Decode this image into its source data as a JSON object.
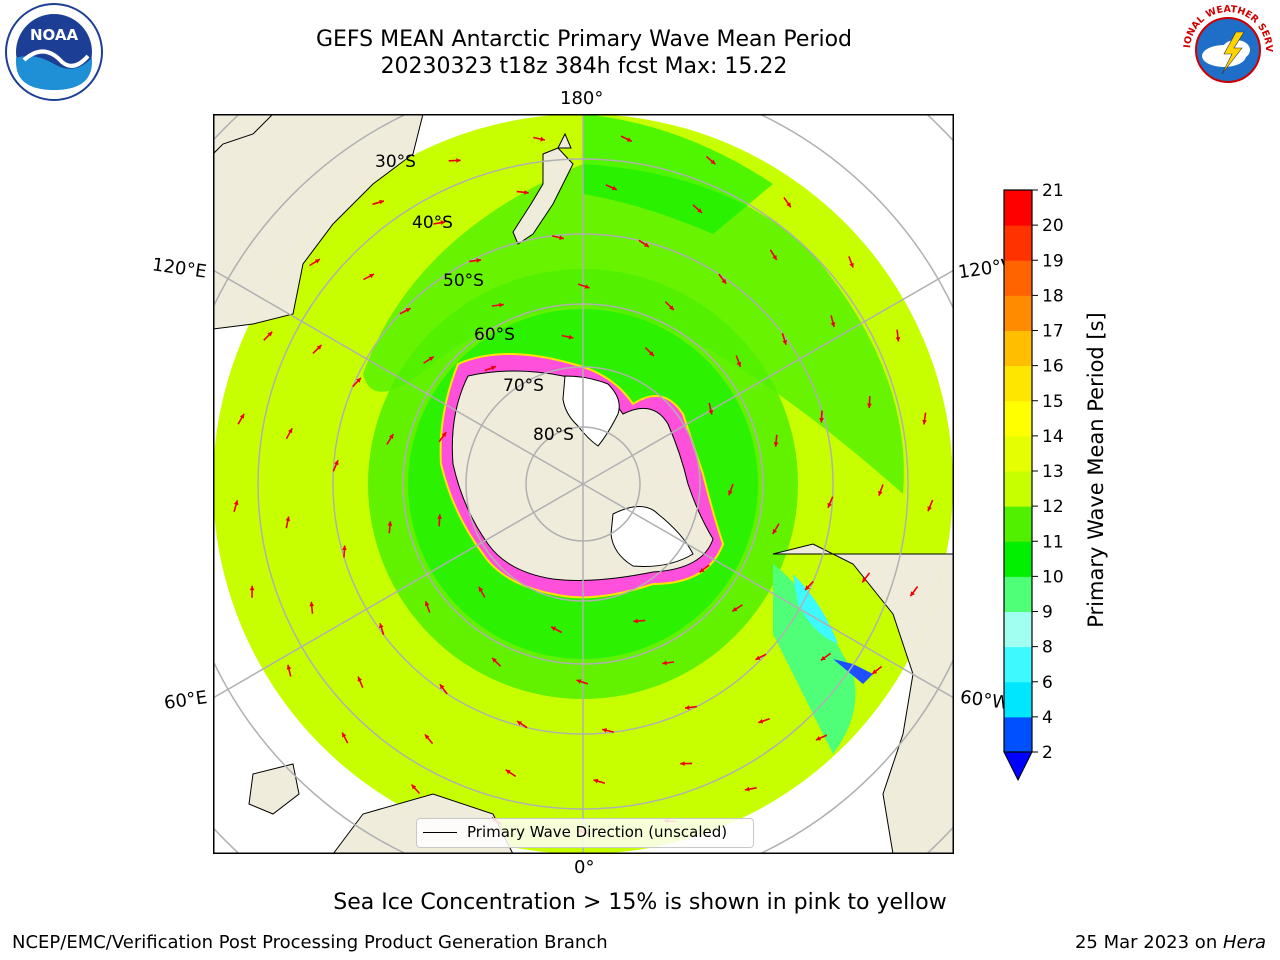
{
  "title": {
    "line1": "GEFS MEAN Antarctic Primary Wave Mean Period",
    "line2": "20230323 t18z 384h fcst   Max: 15.22"
  },
  "map": {
    "projection": "south polar stereographic",
    "lon_labels": {
      "top": "180°",
      "left": "120°E",
      "right": "120°W",
      "lower_left": "60°E",
      "lower_right": "60°W",
      "bottom": "0°"
    },
    "lat_labels": [
      "30°S",
      "40°S",
      "50°S",
      "60°S",
      "70°S",
      "80°S"
    ],
    "colors": {
      "land": "#efecdc",
      "ice_shelf": "#ffffff",
      "sea_ice_pink": "#ff50dc",
      "sea_ice_yellow": "#ffe400",
      "arrow": "#ee0000",
      "grid": "#b0b0b0"
    }
  },
  "colorbar": {
    "label": "Primary Wave Mean Period [s]",
    "ticks": [
      "2",
      "4",
      "6",
      "8",
      "9",
      "10",
      "11",
      "12",
      "13",
      "14",
      "15",
      "16",
      "17",
      "18",
      "19",
      "20",
      "21"
    ],
    "colors": [
      "#0050ff",
      "#00e6ff",
      "#3cfaff",
      "#a0fff0",
      "#50ff78",
      "#00f000",
      "#50f000",
      "#c8ff00",
      "#e6ff00",
      "#ffff00",
      "#ffe600",
      "#ffbe00",
      "#ff8c00",
      "#ff6400",
      "#ff3200",
      "#ff0000"
    ],
    "extend": "min"
  },
  "legend": {
    "label": "Primary Wave Direction (unscaled)"
  },
  "note": "Sea Ice Concentration > 15% is shown in pink to yellow",
  "footer": {
    "left": "NCEP/EMC/Verification Post Processing Product Generation Branch",
    "date": "25 Mar 2023 on ",
    "host": "Hera"
  },
  "logos": {
    "left": "NOAA",
    "right": "NATIONAL WEATHER SERVICE"
  }
}
